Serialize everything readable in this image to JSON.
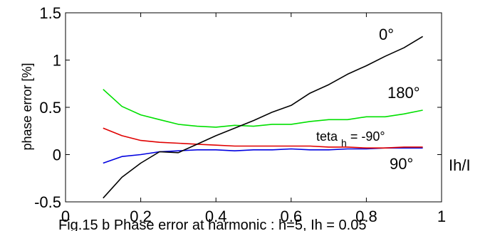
{
  "chart_data": {
    "type": "line",
    "xlim": [
      0,
      1
    ],
    "ylim": [
      -0.5,
      1.5
    ],
    "grid": false,
    "ylabel": "phase error [%]",
    "xlabel": "Ih/I",
    "xticks": [
      "0",
      "0.2",
      "0.4",
      "0.6",
      "0.8",
      "1"
    ],
    "yticks": [
      "-0.5",
      "0",
      "0.5",
      "1",
      "1.5"
    ],
    "x": [
      0.1,
      0.15,
      0.2,
      0.25,
      0.3,
      0.35,
      0.4,
      0.45,
      0.5,
      0.55,
      0.6,
      0.65,
      0.7,
      0.75,
      0.8,
      0.85,
      0.9,
      0.95
    ],
    "series": [
      {
        "name": "0°",
        "color": "#000000",
        "values": [
          -0.46,
          -0.24,
          -0.09,
          0.03,
          0.02,
          0.11,
          0.2,
          0.28,
          0.36,
          0.45,
          0.52,
          0.65,
          0.74,
          0.85,
          0.94,
          1.04,
          1.13,
          1.25
        ]
      },
      {
        "name": "180°",
        "color": "#00e000",
        "values": [
          0.69,
          0.51,
          0.42,
          0.37,
          0.32,
          0.3,
          0.29,
          0.31,
          0.3,
          0.32,
          0.32,
          0.35,
          0.37,
          0.37,
          0.4,
          0.4,
          0.43,
          0.47
        ]
      },
      {
        "name": "",
        "color": "#e00000",
        "values": [
          0.28,
          0.2,
          0.15,
          0.13,
          0.12,
          0.11,
          0.1,
          0.09,
          0.09,
          0.09,
          0.09,
          0.09,
          0.08,
          0.08,
          0.07,
          0.07,
          0.08,
          0.08
        ]
      },
      {
        "name": "90°",
        "color": "#0000e0",
        "values": [
          -0.09,
          -0.02,
          0.0,
          0.03,
          0.04,
          0.05,
          0.05,
          0.04,
          0.05,
          0.05,
          0.06,
          0.05,
          0.05,
          0.06,
          0.06,
          0.07,
          0.07,
          0.07
        ]
      }
    ],
    "annotations": {
      "teta_main": "teta",
      "teta_sub": "h",
      "teta_value": " = -90°"
    },
    "caption": "Fig.15 b Phase error at harmonic : h=5, Ih = 0.05"
  }
}
